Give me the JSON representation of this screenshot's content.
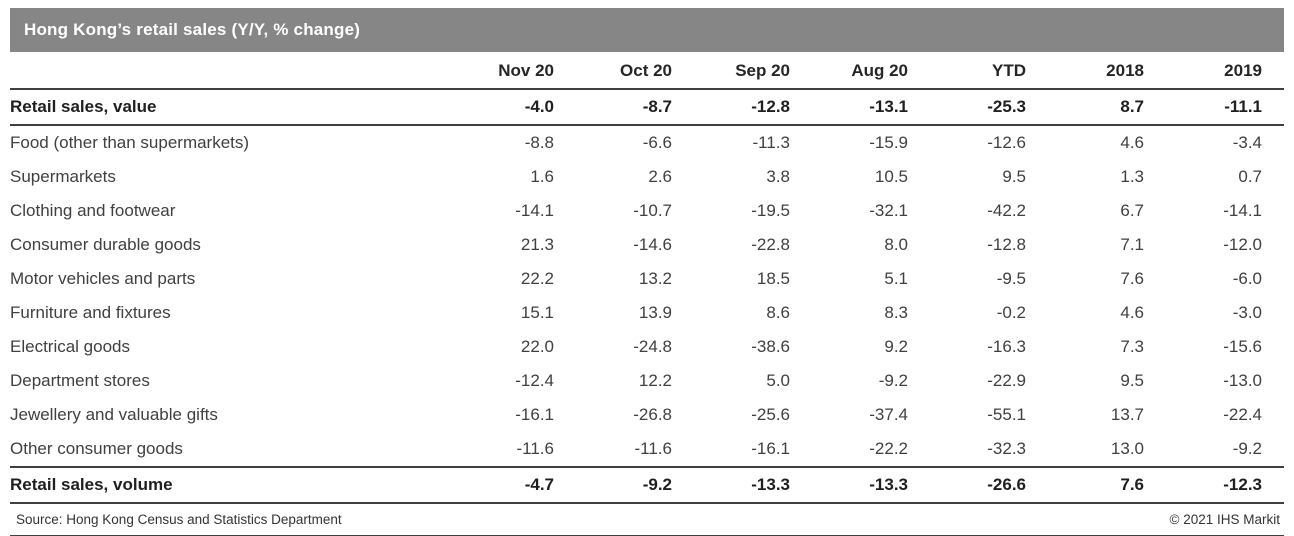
{
  "chart_data": {
    "type": "table",
    "title": "Hong Kong’s retail sales (Y/Y, % change)",
    "columns": [
      "",
      "Nov 20",
      "Oct 20",
      "Sep 20",
      "Aug 20",
      "YTD",
      "2018",
      "2019"
    ],
    "rows": [
      {
        "label": "Retail sales, value",
        "indent": 0,
        "bold": true,
        "values": [
          "-4.0",
          "-8.7",
          "-12.8",
          "-13.1",
          "-25.3",
          "8.7",
          "-11.1"
        ]
      },
      {
        "label": "Food (other than supermarkets)",
        "indent": 1,
        "bold": false,
        "values": [
          "-8.8",
          "-6.6",
          "-11.3",
          "-15.9",
          "-12.6",
          "4.6",
          "-3.4"
        ]
      },
      {
        "label": "Supermarkets",
        "indent": 1,
        "bold": false,
        "values": [
          "1.6",
          "2.6",
          "3.8",
          "10.5",
          "9.5",
          "1.3",
          "0.7"
        ]
      },
      {
        "label": "Clothing and footwear",
        "indent": 1,
        "bold": false,
        "values": [
          "-14.1",
          "-10.7",
          "-19.5",
          "-32.1",
          "-42.2",
          "6.7",
          "-14.1"
        ]
      },
      {
        "label": "Consumer durable goods",
        "indent": 1,
        "bold": false,
        "values": [
          "21.3",
          "-14.6",
          "-22.8",
          "8.0",
          "-12.8",
          "7.1",
          "-12.0"
        ]
      },
      {
        "label": "Motor vehicles and parts",
        "indent": 2,
        "bold": false,
        "values": [
          "22.2",
          "13.2",
          "18.5",
          "5.1",
          "-9.5",
          "7.6",
          "-6.0"
        ]
      },
      {
        "label": "Furniture and fixtures",
        "indent": 2,
        "bold": false,
        "values": [
          "15.1",
          "13.9",
          "8.6",
          "8.3",
          "-0.2",
          "4.6",
          "-3.0"
        ]
      },
      {
        "label": "Electrical goods",
        "indent": 2,
        "bold": false,
        "values": [
          "22.0",
          "-24.8",
          "-38.6",
          "9.2",
          "-16.3",
          "7.3",
          "-15.6"
        ]
      },
      {
        "label": "Department stores",
        "indent": 1,
        "bold": false,
        "values": [
          "-12.4",
          "12.2",
          "5.0",
          "-9.2",
          "-22.9",
          "9.5",
          "-13.0"
        ]
      },
      {
        "label": "Jewellery and valuable gifts",
        "indent": 1,
        "bold": false,
        "values": [
          "-16.1",
          "-26.8",
          "-25.6",
          "-37.4",
          "-55.1",
          "13.7",
          "-22.4"
        ]
      },
      {
        "label": "Other consumer goods",
        "indent": 1,
        "bold": false,
        "values": [
          "-11.6",
          "-11.6",
          "-16.1",
          "-22.2",
          "-32.3",
          "13.0",
          "-9.2"
        ]
      },
      {
        "label": "Retail sales, volume",
        "indent": 0,
        "bold": true,
        "values": [
          "-4.7",
          "-9.2",
          "-13.3",
          "-13.3",
          "-26.6",
          "7.6",
          "-12.3"
        ]
      }
    ]
  },
  "footer": {
    "source": "Source: Hong Kong Census and Statistics Department",
    "copyright": "© 2021 IHS Markit"
  },
  "colors": {
    "title_bar_bg": "#868686",
    "title_bar_text": "#ffffff",
    "rule": "#404040"
  }
}
